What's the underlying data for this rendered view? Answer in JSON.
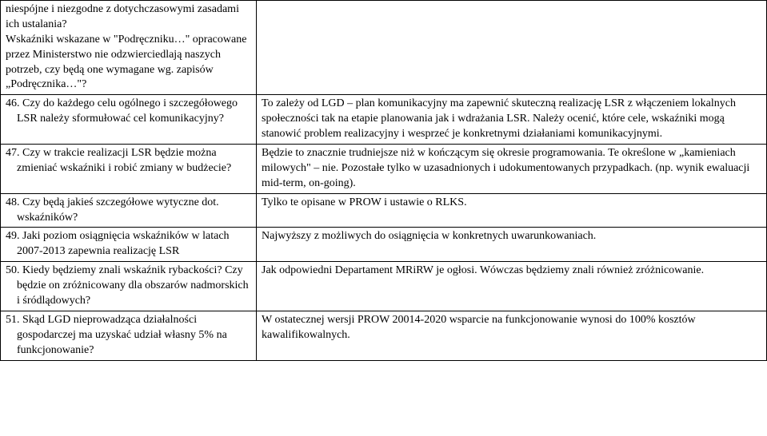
{
  "table": {
    "rows": [
      {
        "left": "niespójne i niezgodne z dotychczasowymi zasadami ich ustalania?\nWskaźniki wskazane w \"Podręczniku…\" opracowane przez Ministerstwo nie odzwierciedlają naszych potrzeb, czy będą one wymagane wg. zapisów „Podręcznika…\"?",
        "right": ""
      },
      {
        "left": "46. Czy do każdego celu ogólnego i szczegółowego LSR należy sformułować cel komunikacyjny?",
        "right": "To zależy od LGD – plan komunikacyjny ma zapewnić skuteczną realizację LSR z włączeniem lokalnych społeczności tak na etapie planowania jak i wdrażania LSR. Należy ocenić, które cele, wskaźniki mogą stanowić problem realizacyjny i wesprzeć je konkretnymi działaniami komunikacyjnymi."
      },
      {
        "left": "47. Czy w trakcie realizacji LSR będzie można zmieniać wskaźniki i robić zmiany w budżecie?",
        "right": "Będzie to znacznie trudniejsze niż w kończącym się okresie programowania. Te określone w „kamieniach milowych\" – nie. Pozostałe tylko w uzasadnionych i udokumentowanych przypadkach. (np. wynik ewaluacji mid-term, on-going)."
      },
      {
        "left": "48. Czy będą jakieś szczegółowe wytyczne dot. wskaźników?",
        "right": "Tylko te opisane w PROW i ustawie o RLKS."
      },
      {
        "left": "49. Jaki poziom osiągnięcia wskaźników w latach 2007-2013 zapewnia realizację LSR",
        "right": "Najwyższy z możliwych do osiągnięcia w konkretnych uwarunkowaniach."
      },
      {
        "left": "50. Kiedy będziemy znali wskaźnik rybackości? Czy będzie on zróżnicowany dla obszarów nadmorskich i śródlądowych?",
        "right": "Jak odpowiedni Departament MRiRW je ogłosi. Wówczas będziemy znali również zróżnicowanie."
      },
      {
        "left": "51. Skąd LGD nieprowadząca działalności gospodarczej ma uzyskać udział własny 5% na funkcjonowanie?",
        "right": "W ostatecznej wersji PROW 20014-2020 wsparcie na funkcjonowanie wynosi do 100% kosztów kawalifikowalnych."
      }
    ]
  }
}
